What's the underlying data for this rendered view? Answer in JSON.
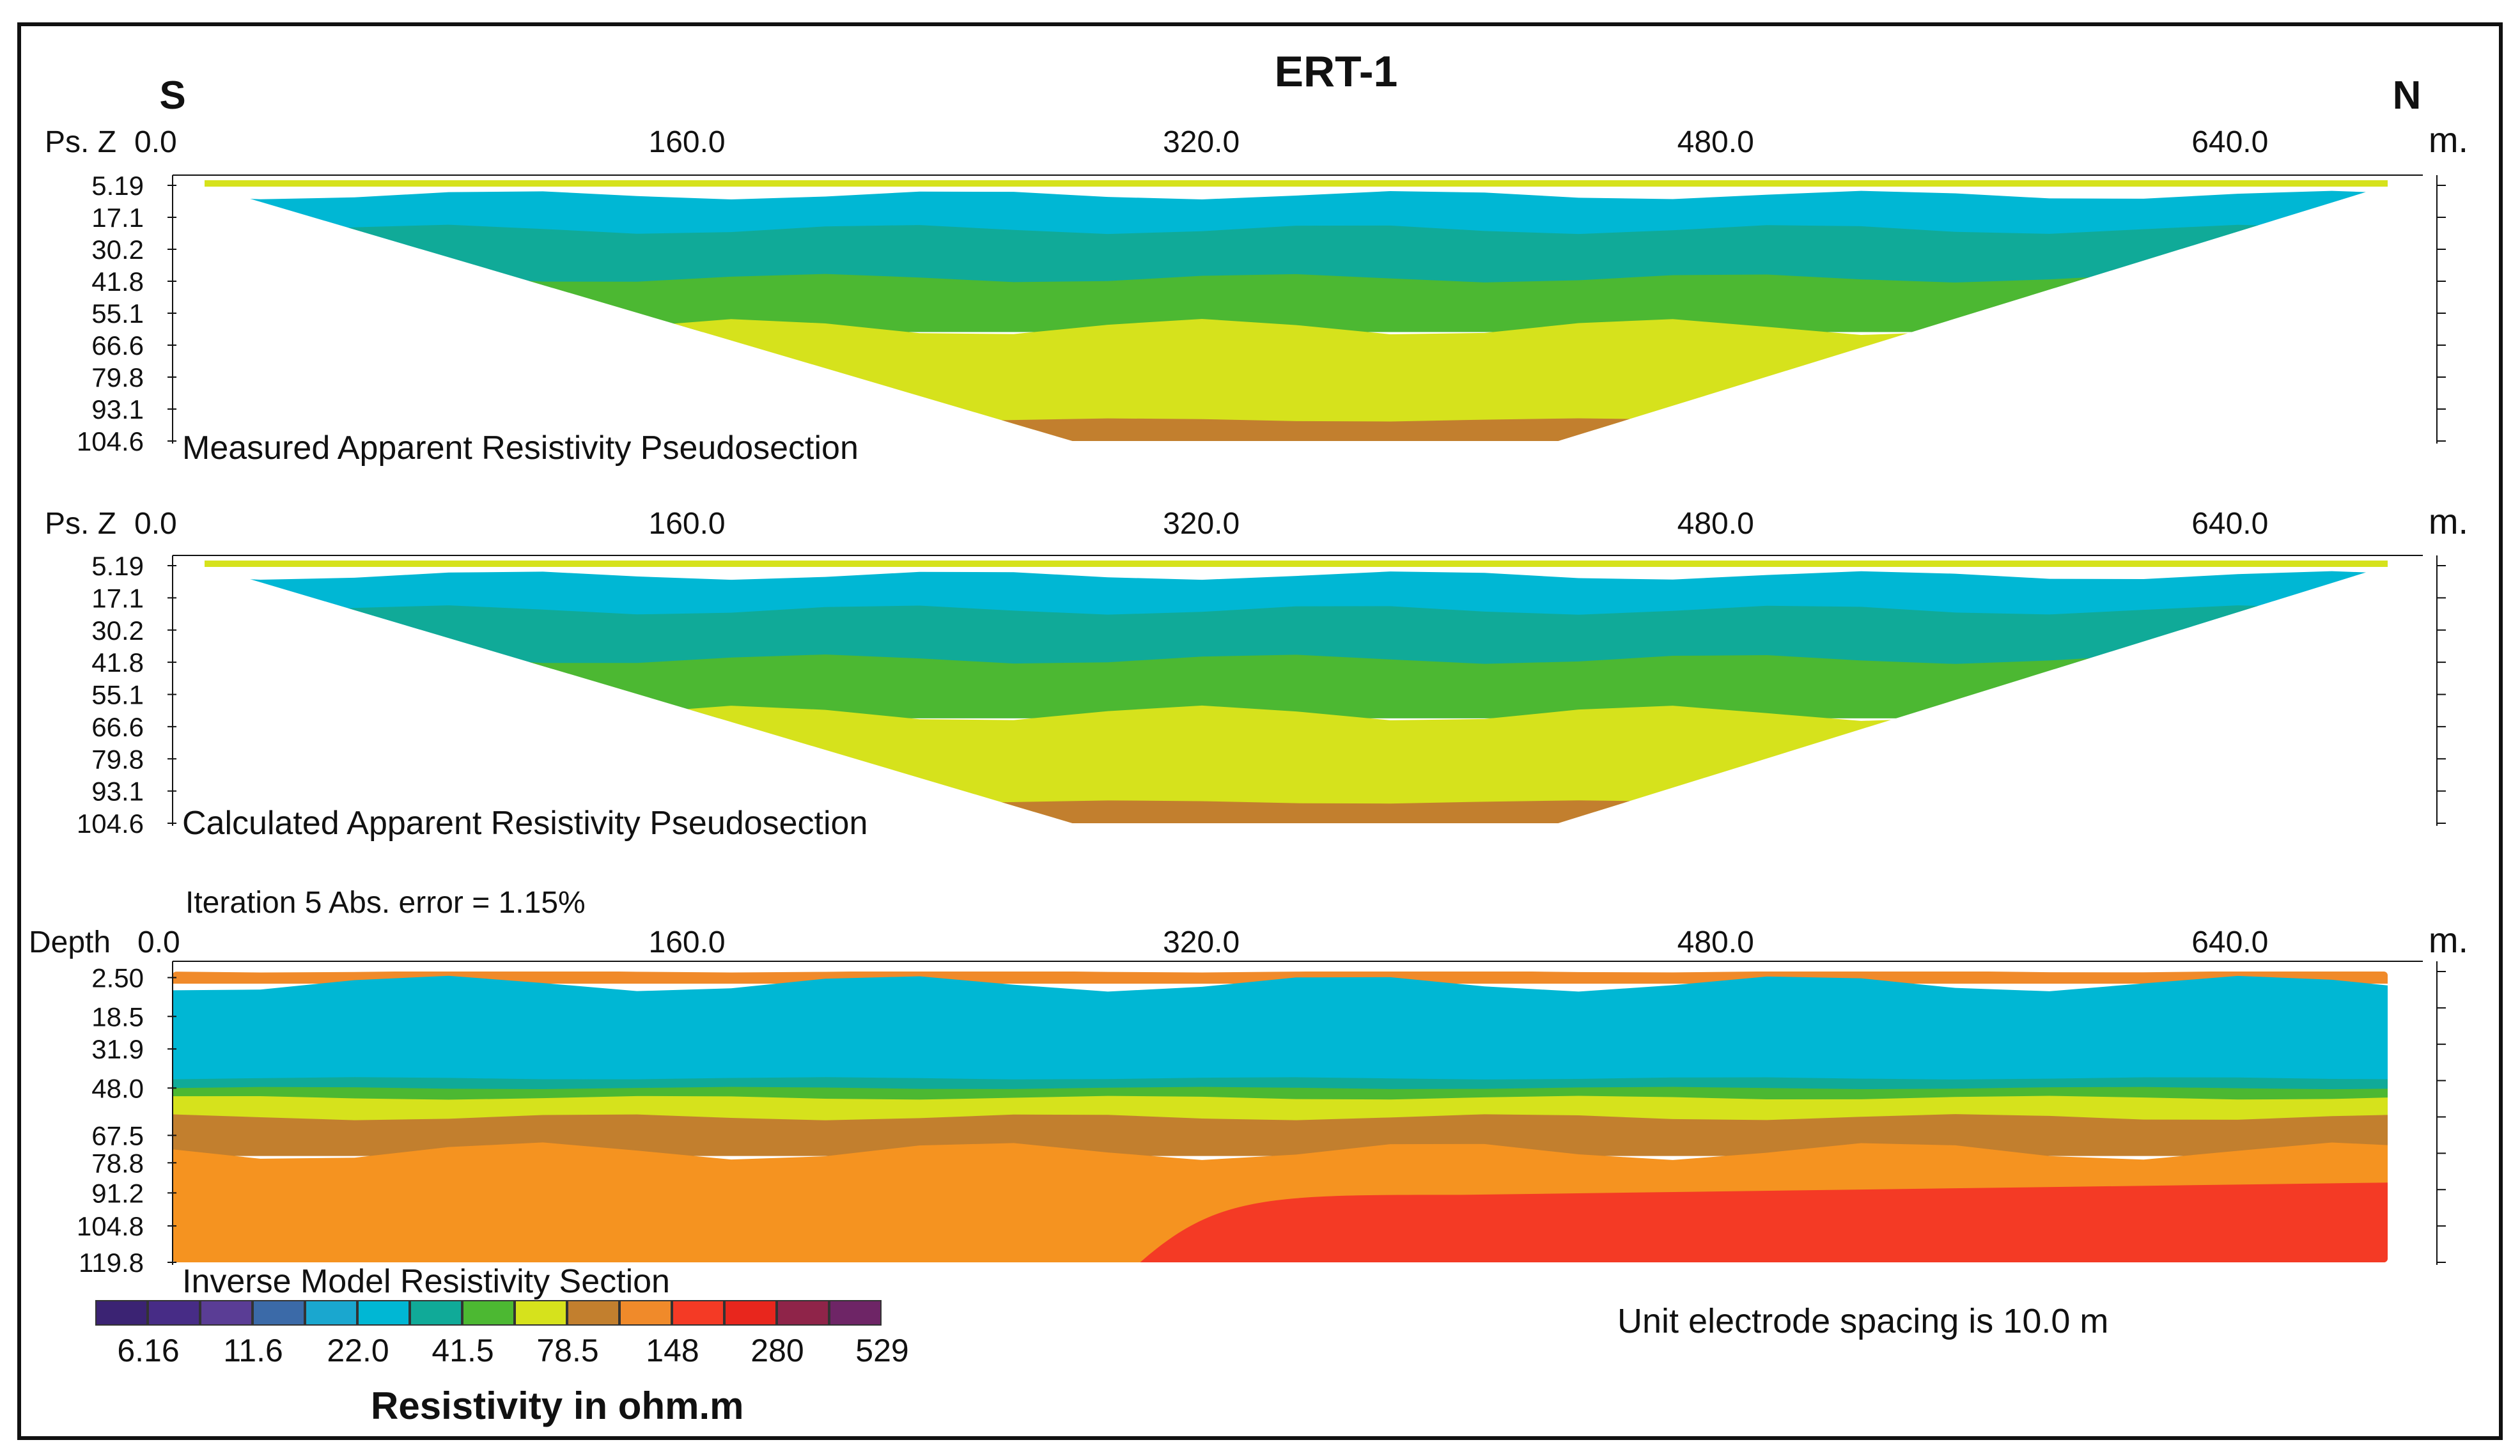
{
  "chart_data": {
    "type": "heatmap",
    "title": "ERT-1",
    "direction_left": "S",
    "direction_right": "N",
    "x_unit": "m.",
    "x_ticks": [
      0.0,
      160.0,
      320.0,
      480.0,
      640.0
    ],
    "x_tick_labels": [
      "0.0",
      "160.0",
      "320.0",
      "480.0",
      "640.0"
    ],
    "x_range": [
      0,
      700
    ],
    "panels": [
      {
        "id": "measured",
        "title": "Measured Apparent Resistivity Pseudosection",
        "y_label": "Ps. Z",
        "x_first_label": "0.0",
        "y_ticks": [
          "5.19",
          "17.1",
          "30.2",
          "41.8",
          "55.1",
          "66.6",
          "79.8",
          "93.1",
          "104.6"
        ],
        "y_range": [
          0,
          104.6
        ],
        "shape": "triangle",
        "layers": [
          {
            "color": "#00b7d4",
            "from": 4,
            "to": 26
          },
          {
            "color": "#10aa98",
            "from": 18,
            "to": 42
          },
          {
            "color": "#4cb832",
            "from": 38,
            "to": 60
          },
          {
            "color": "#d6e21c",
            "from": 58,
            "to": 100
          },
          {
            "color": "#c27f2e",
            "from": 96,
            "to": 104.6
          }
        ]
      },
      {
        "id": "calculated",
        "title": "Calculated Apparent Resistivity Pseudosection",
        "y_label": "Ps. Z",
        "x_first_label": "0.0",
        "y_ticks": [
          "5.19",
          "17.1",
          "30.2",
          "41.8",
          "55.1",
          "66.6",
          "79.8",
          "93.1",
          "104.6"
        ],
        "y_range": [
          0,
          104.6
        ],
        "shape": "triangle",
        "layers": [
          {
            "color": "#00b7d4",
            "from": 4,
            "to": 26
          },
          {
            "color": "#10aa98",
            "from": 18,
            "to": 42
          },
          {
            "color": "#4cb832",
            "from": 38,
            "to": 62
          },
          {
            "color": "#d6e21c",
            "from": 60,
            "to": 100
          },
          {
            "color": "#c27f2e",
            "from": 96,
            "to": 104.6
          }
        ]
      },
      {
        "id": "inverse",
        "title": "Inverse Model Resistivity Section",
        "subtitle": "Iteration 5 Abs. error = 1.15%",
        "y_label": "Depth",
        "x_first_label": "0.0",
        "y_ticks": [
          "2.50",
          "18.5",
          "31.9",
          "48.0",
          "67.5",
          "78.8",
          "91.2",
          "104.8",
          "119.8"
        ],
        "y_tick_values": [
          2.5,
          18.5,
          31.9,
          48.0,
          67.5,
          78.8,
          91.2,
          104.8,
          119.8
        ],
        "y_range": [
          0,
          119.8
        ],
        "shape": "rectangle",
        "layers": [
          {
            "color": "#f08a2a",
            "from": 0,
            "to": 5
          },
          {
            "color": "#00b7d4",
            "from": 5,
            "to": 46
          },
          {
            "color": "#10aa98",
            "from": 44,
            "to": 50
          },
          {
            "color": "#4cb832",
            "from": 48,
            "to": 54
          },
          {
            "color": "#d6e21c",
            "from": 52,
            "to": 62
          },
          {
            "color": "#c27f2e",
            "from": 60,
            "to": 76
          },
          {
            "color": "#f59320",
            "from": 74,
            "to": 119.8
          }
        ],
        "red_zone": {
          "color": "#f43a25",
          "x_start": 300,
          "x_end": 700,
          "from": 92,
          "to": 119.8
        }
      }
    ],
    "color_scale": {
      "colors": [
        "#3b2373",
        "#472c86",
        "#5a3d95",
        "#3b6aa8",
        "#1aa7cf",
        "#00b7d4",
        "#10aa98",
        "#4cb832",
        "#d6e21c",
        "#c27f2e",
        "#f08a2a",
        "#f43a25",
        "#e8261d",
        "#8f2449",
        "#6e2566"
      ],
      "labels": [
        "6.16",
        "11.6",
        "22.0",
        "41.5",
        "78.5",
        "148",
        "280",
        "529"
      ],
      "title": "Resistivity in ohm.m"
    },
    "note": "Unit electrode spacing is 10.0 m"
  }
}
